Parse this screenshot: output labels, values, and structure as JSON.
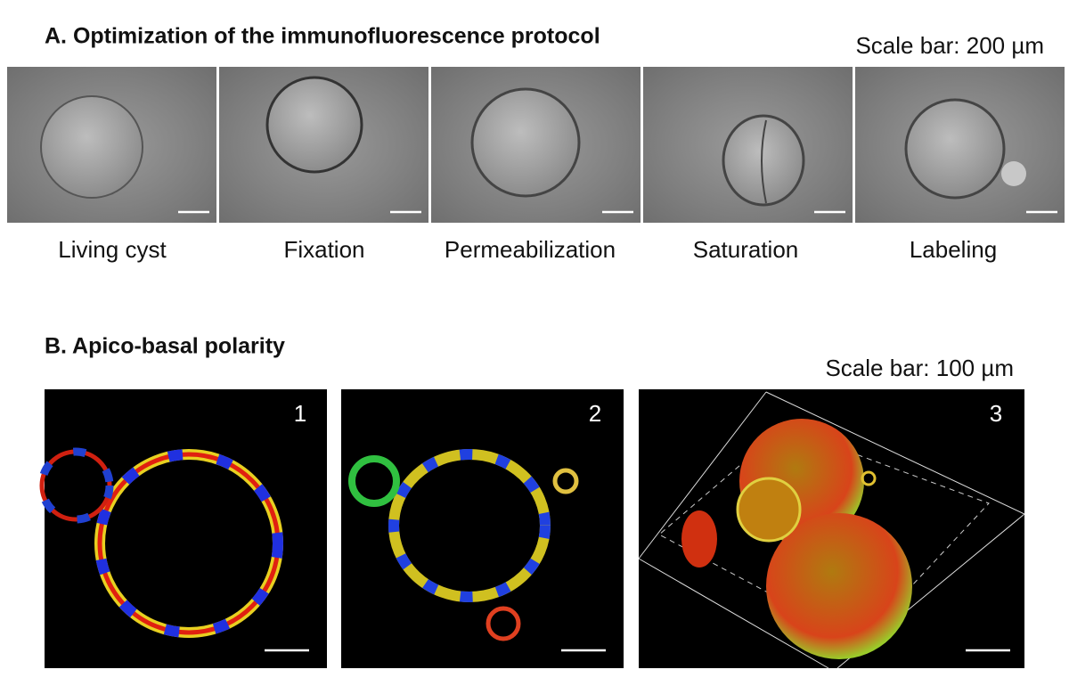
{
  "panel_a": {
    "title": "A. Optimization of the immunofluorescence protocol",
    "scale_bar": "Scale bar: 200 µm",
    "images": [
      {
        "label": "Living cyst"
      },
      {
        "label": "Fixation"
      },
      {
        "label": "Permeabilization"
      },
      {
        "label": "Saturation"
      },
      {
        "label": "Labeling"
      }
    ]
  },
  "panel_b": {
    "title": "B. Apico-basal polarity",
    "scale_bar": "Scale bar: 100 µm",
    "images": [
      {
        "label": "1"
      },
      {
        "label": "2"
      },
      {
        "label": "3"
      }
    ]
  }
}
